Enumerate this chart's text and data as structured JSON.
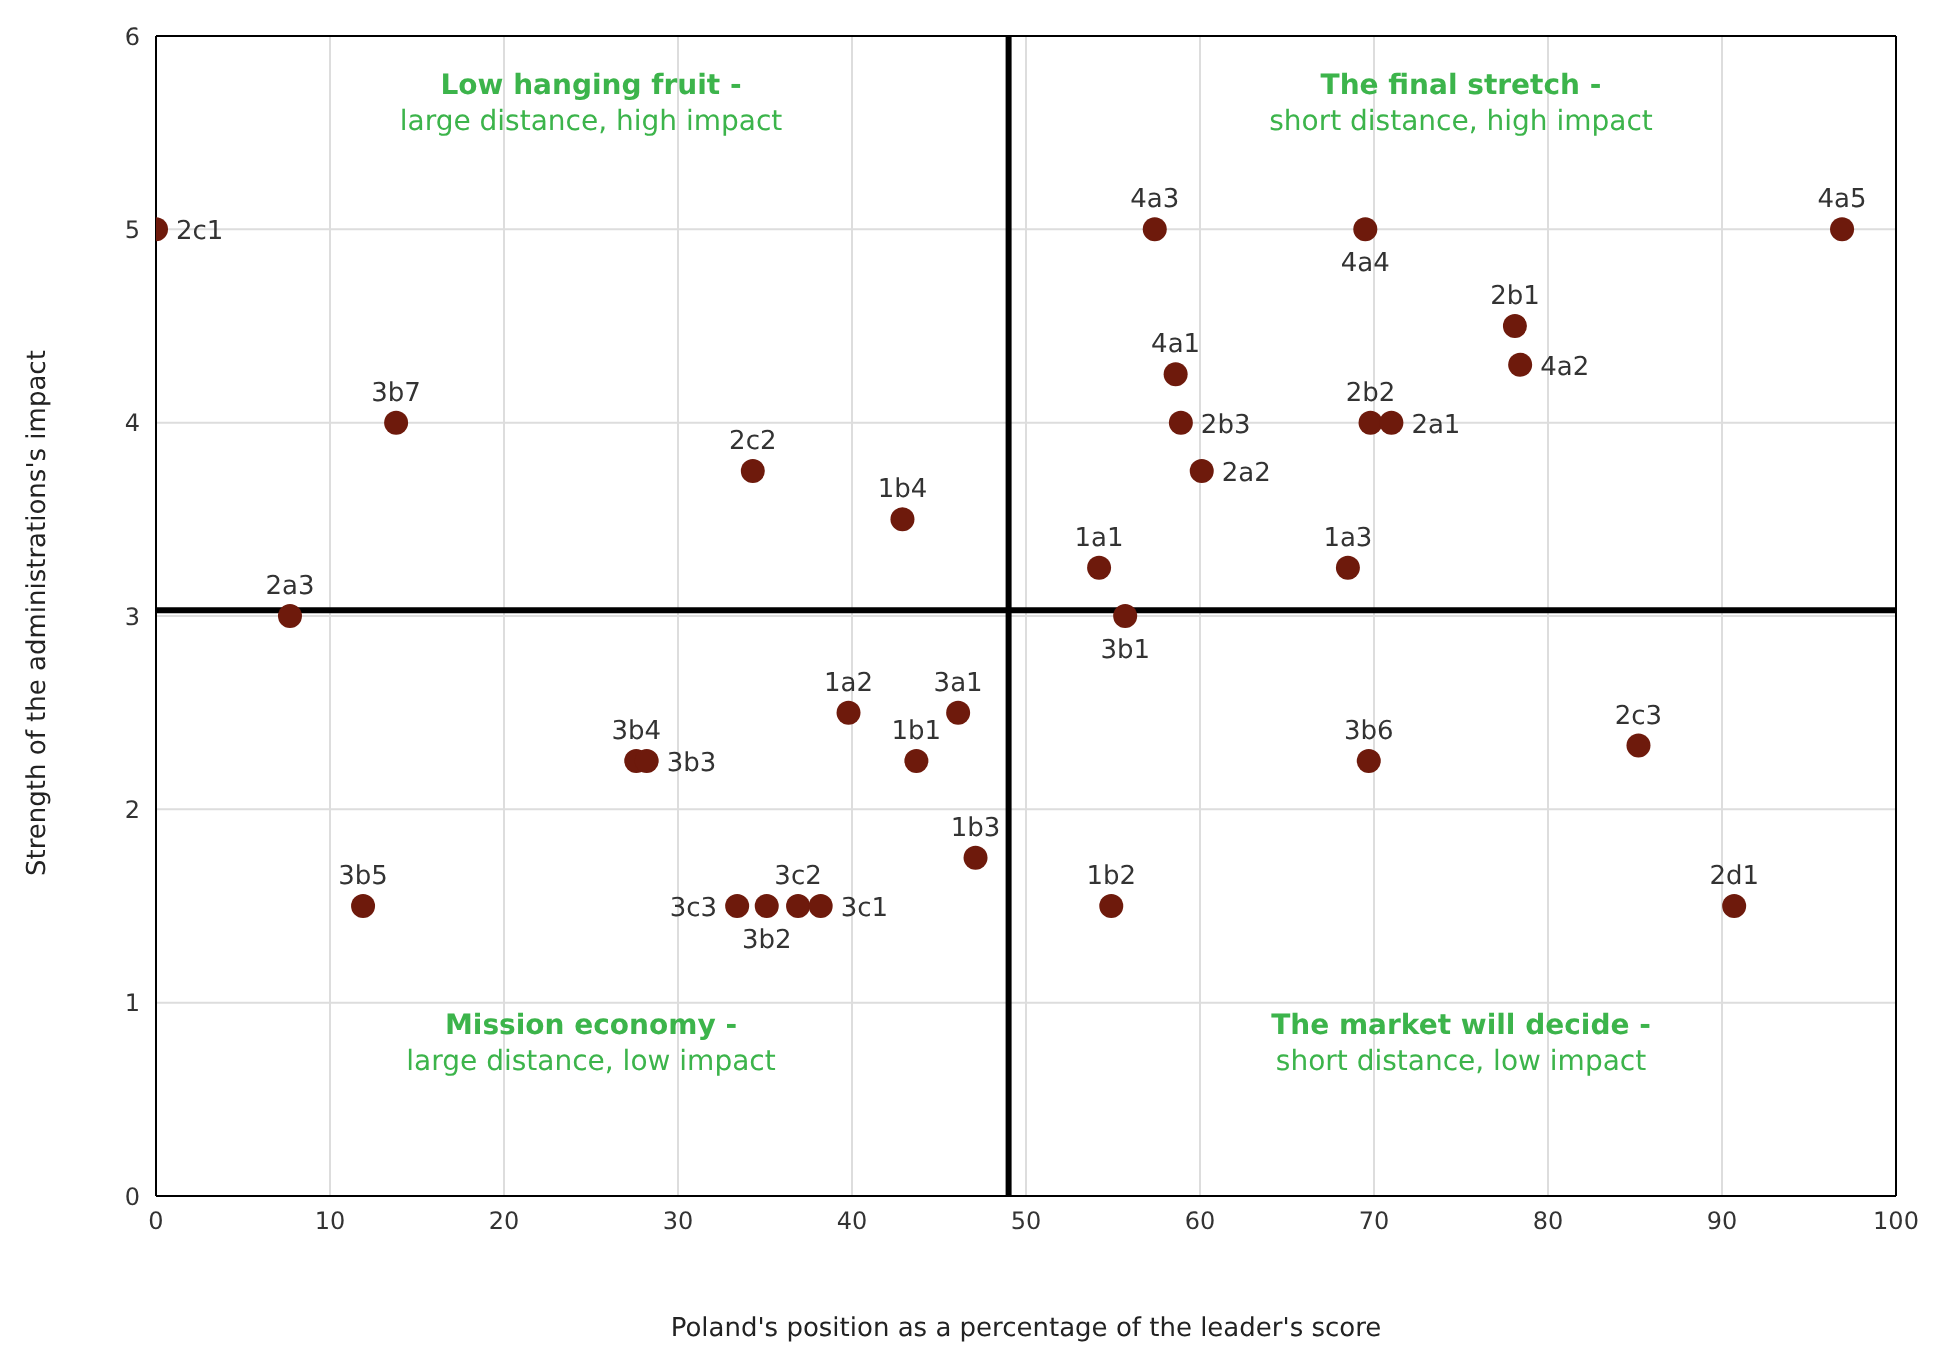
{
  "chart_data": {
    "type": "scatter",
    "xlabel": "Poland's position as a percentage of the leader's score",
    "ylabel": "Strength of the administrations's impact",
    "x": [
      0,
      13.8,
      7.7,
      34.3,
      42.9,
      27.6,
      28.2,
      39.8,
      46.1,
      43.7,
      47.1,
      11.9,
      33.4,
      35.1,
      36.9,
      38.2,
      54.9,
      54.2,
      55.7,
      57.4,
      58.6,
      58.9,
      60.1,
      68.5,
      69.7,
      69.5,
      69.8,
      71,
      78.1,
      78.4,
      85.2,
      90.7,
      96.9
    ],
    "values": [
      5,
      4,
      3,
      3.75,
      3.5,
      2.25,
      2.25,
      2.5,
      2.5,
      2.25,
      1.75,
      1.5,
      1.5,
      1.5,
      1.5,
      1.5,
      1.5,
      3.25,
      3,
      5,
      4.25,
      4,
      3.75,
      3.25,
      2.25,
      5,
      4,
      4,
      4.5,
      4.3,
      2.33,
      1.5,
      5
    ],
    "value_labels": [
      "2c1",
      "3b7",
      "2a3",
      "2c2",
      "1b4",
      "3b4",
      "3b3",
      "1a2",
      "3a1",
      "1b1",
      "1b3",
      "3b5",
      "3c3",
      "3b2",
      "3c2",
      "3c1",
      "1b2",
      "1a1",
      "3b1",
      "4a3",
      "4a1",
      "2b3",
      "2a2",
      "1a3",
      "3b6",
      "4a4",
      "2b2",
      "2a1",
      "2b1",
      "4a2",
      "2c3",
      "2d1",
      "4a5"
    ],
    "color": "#6e1a0c",
    "marker": "circle",
    "xlim": [
      0,
      100
    ],
    "xticks": [
      0,
      10,
      20,
      30,
      40,
      50,
      60,
      70,
      80,
      90,
      100
    ],
    "ylim": [
      0,
      6
    ],
    "yticks": [
      0,
      1,
      2,
      3,
      4,
      5,
      6
    ],
    "grid": true,
    "legend": false,
    "ref_lines": [
      {
        "axis": "x",
        "value": 49,
        "color": "#000000"
      },
      {
        "axis": "y",
        "value": 3.03,
        "color": "#000000"
      }
    ],
    "annotations": [
      "Low hanging fruit -\nlarge distance, high impact",
      "The final stretch -\nshort distance, high impact",
      "Mission economy -\nlarge distance, low impact",
      "The market will decide -\nshort distance, low impact"
    ]
  }
}
